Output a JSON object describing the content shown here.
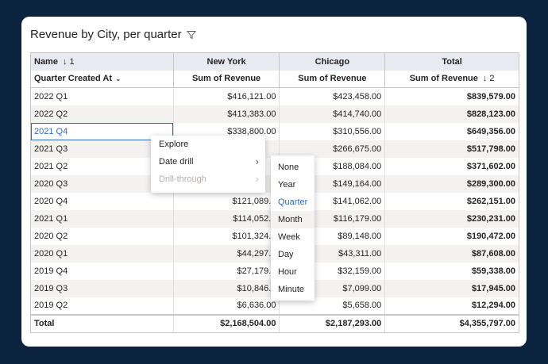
{
  "visual": {
    "title": "Revenue by City, per quarter"
  },
  "table": {
    "header1": {
      "name_label": "Name",
      "name_sort": "↓ 1",
      "col1": "New York",
      "col2": "Chicago",
      "col3": "Total"
    },
    "header2": {
      "row_field": "Quarter Created At",
      "col1": "Sum of Revenue",
      "col2": "Sum of Revenue",
      "col3": "Sum of Revenue",
      "col3_sort": "↓ 2"
    },
    "rows": [
      {
        "q": "2022 Q1",
        "ny": "$416,121.00",
        "chi": "$423,458.00",
        "tot": "$839,579.00"
      },
      {
        "q": "2022 Q2",
        "ny": "$413,383.00",
        "chi": "$414,740.00",
        "tot": "$828,123.00"
      },
      {
        "q": "2021 Q4",
        "ny": "$338,800.00",
        "chi": "$310,556.00",
        "tot": "$649,356.00"
      },
      {
        "q": "2021 Q3",
        "ny": "",
        "chi": "$266,675.00",
        "tot": "$517,798.00"
      },
      {
        "q": "2021 Q2",
        "ny": "",
        "chi": "$188,084.00",
        "tot": "$371,602.00"
      },
      {
        "q": "2020 Q3",
        "ny": "",
        "chi": "$149,164.00",
        "tot": "$289,300.00"
      },
      {
        "q": "2020 Q4",
        "ny": "$121,089.0",
        "chi": "$141,062.00",
        "tot": "$262,151.00"
      },
      {
        "q": "2021 Q1",
        "ny": "$114,052.0",
        "chi": "$116,179.00",
        "tot": "$230,231.00"
      },
      {
        "q": "2020 Q2",
        "ny": "$101,324.0",
        "chi": "$89,148.00",
        "tot": "$190,472.00"
      },
      {
        "q": "2020 Q1",
        "ny": "$44,297.0",
        "chi": "$43,311.00",
        "tot": "$87,608.00"
      },
      {
        "q": "2019 Q4",
        "ny": "$27,179.0",
        "chi": "$32,159.00",
        "tot": "$59,338.00"
      },
      {
        "q": "2019 Q3",
        "ny": "$10,846.0",
        "chi": "$7,099.00",
        "tot": "$17,945.00"
      },
      {
        "q": "2019 Q2",
        "ny": "$6,636.00",
        "chi": "$5,658.00",
        "tot": "$12,294.00"
      }
    ],
    "total": {
      "label": "Total",
      "ny": "$2,168,504.00",
      "chi": "$2,187,293.00",
      "tot": "$4,355,797.00"
    }
  },
  "context_menu": {
    "explore": "Explore",
    "date_drill": "Date drill",
    "drill_through": "Drill-through",
    "submenu": [
      "None",
      "Year",
      "Quarter",
      "Month",
      "Week",
      "Day",
      "Hour",
      "Minute"
    ],
    "submenu_selected": "Quarter"
  },
  "colors": {
    "background": "#0c2340",
    "accent": "#2f6bbd",
    "header_bg": "#e8eaf1"
  }
}
